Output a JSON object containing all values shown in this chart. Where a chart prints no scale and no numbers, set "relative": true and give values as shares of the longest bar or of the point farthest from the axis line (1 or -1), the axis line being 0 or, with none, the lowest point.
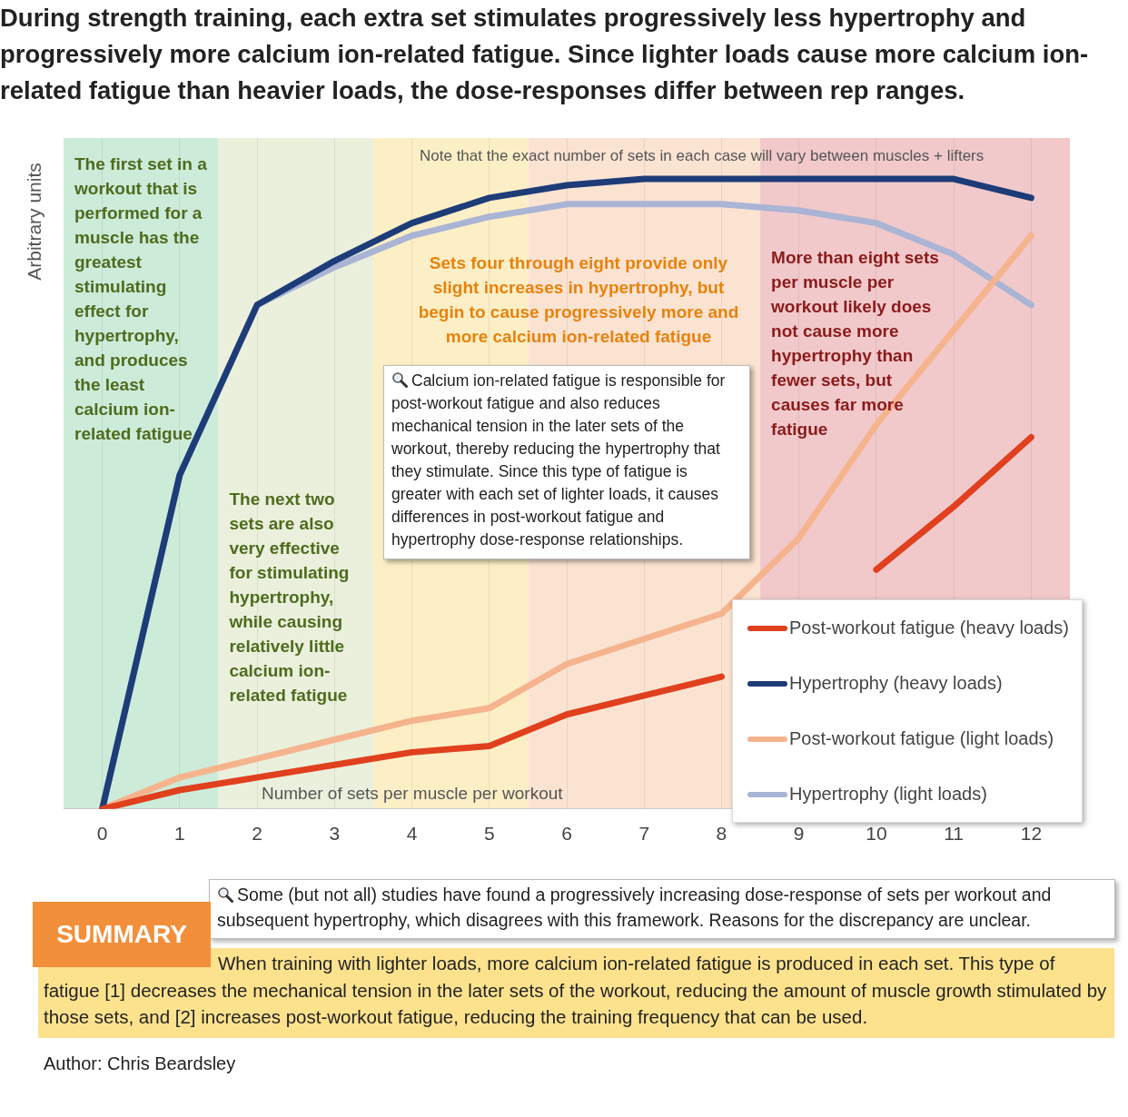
{
  "chart_data": {
    "type": "line",
    "title": "During strength training, each extra set stimulates progressively less hypertrophy and progressively more calcium ion-related fatigue. Since lighter loads cause more calcium ion-related fatigue than heavier loads, the dose-responses differ between rep ranges.",
    "xlabel": "Number of sets per muscle per workout",
    "ylabel": "Arbitrary units",
    "x": [
      0,
      1,
      2,
      3,
      4,
      5,
      6,
      7,
      8,
      9,
      10,
      11,
      12
    ],
    "xlim": [
      -0.5,
      12.5
    ],
    "xticks": [
      0,
      1,
      2,
      3,
      4,
      5,
      6,
      7,
      8,
      9,
      10,
      11,
      12
    ],
    "relative": true,
    "grid": "x",
    "legend": "bottom right",
    "marker": "none",
    "line_style": "solid",
    "series": [
      {
        "name": "Post-workout fatigue (heavy loads)",
        "color": "#e0401e",
        "values": [
          0,
          0.03,
          0.05,
          0.07,
          0.09,
          0.1,
          0.15,
          0.18,
          0.21,
          null,
          0.38,
          0.48,
          0.59
        ]
      },
      {
        "name": "Hypertrophy (heavy loads)",
        "color": "#1d3c78",
        "values": [
          0,
          0.53,
          0.8,
          0.87,
          0.93,
          0.97,
          0.99,
          1,
          1,
          1,
          1,
          1,
          0.97
        ]
      },
      {
        "name": "Post-workout fatigue (light loads)",
        "color": "#f5b48e",
        "values": [
          0,
          0.05,
          0.08,
          0.11,
          0.14,
          0.16,
          0.23,
          0.27,
          0.31,
          0.43,
          0.61,
          0.76,
          0.91
        ]
      },
      {
        "name": "Hypertrophy (light loads)",
        "color": "#aab4d4",
        "values": [
          0,
          0.53,
          0.8,
          0.86,
          0.91,
          0.94,
          0.96,
          0.96,
          0.96,
          0.95,
          0.93,
          0.88,
          0.8
        ]
      }
    ],
    "bands": [
      {
        "axis": "x",
        "from": -0.5,
        "to": 1.5,
        "color": "#cdebd9",
        "label": "The first set in a workout that is performed for a muscle has the greatest stimulating effect for hypertrophy, and produces the least calcium ion-related fatigue"
      },
      {
        "axis": "x",
        "from": 1.5,
        "to": 3.5,
        "color": "#eaf0dc",
        "label": "The next two sets are also very effective for stimulating hypertrophy, while causing relatively little calcium ion-related fatigue"
      },
      {
        "axis": "x",
        "from": 3.5,
        "to": 5.5,
        "color": "#fcefc6"
      },
      {
        "axis": "x",
        "from": 5.5,
        "to": 8.5,
        "color": "#fbe3d2"
      },
      {
        "axis": "x",
        "from": 8.5,
        "to": 12.5,
        "color": "#f1c9cb",
        "label": "More than eight sets per muscle per workout likely does not cause more hypertrophy than fewer sets, but causes far more fatigue"
      }
    ],
    "annotations": [
      "Note that the exact number of sets in each case will vary between muscles + lifters",
      "Sets four through eight provide only slight increases in hypertrophy, but begin to cause progressively more and more calcium ion-related fatigue",
      "Calcium ion-related fatigue is responsible for post-workout fatigue and also reduces mechanical tension in the later sets of the workout, thereby reducing the hypertrophy that they stimulate. Since this type of fatigue is greater with each set of lighter loads, it causes differences in post-workout fatigue and hypertrophy dose-response relationships.",
      "Some (but not all) studies have found a progressively increasing dose-response of sets per workout and subsequent hypertrophy, which disagrees with this framework. Reasons for the discrepancy are unclear.",
      "SUMMARY",
      "When training with lighter loads, more calcium ion-related fatigue is produced in each set. This type of fatigue [1] decreases the mechanical tension in the later sets of the workout, reducing the amount of muscle growth stimulated by those sets, and [2] increases post-workout fatigue, reducing the training frequency that can be used.",
      "Author: Chris Beardsley"
    ]
  }
}
